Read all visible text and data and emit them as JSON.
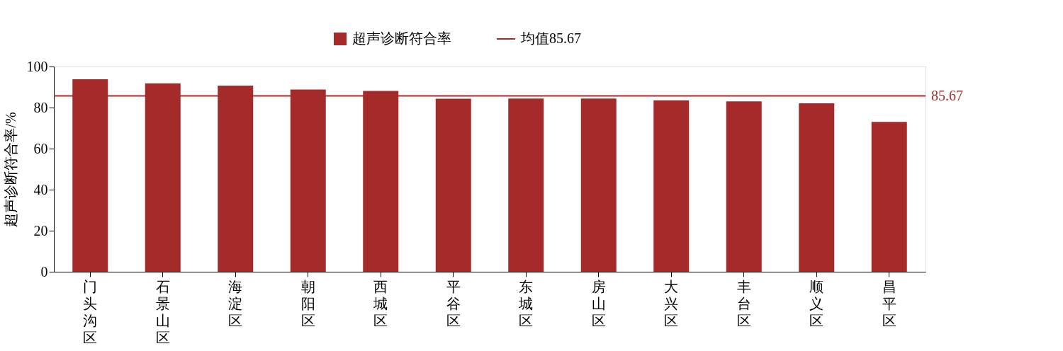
{
  "chart_data": {
    "type": "bar",
    "ylabel": "超声诊断符合率/%",
    "categories": [
      "门头沟区",
      "石景山区",
      "海淀区",
      "朝阳区",
      "西城区",
      "平谷区",
      "东城区",
      "房山区",
      "大兴区",
      "丰台区",
      "顺义区",
      "昌平区"
    ],
    "series": [
      {
        "name": "超声诊断符合率",
        "color": "#a52a2a",
        "values": [
          93.8,
          91.8,
          90.7,
          88.8,
          88.1,
          84.3,
          84.4,
          84.4,
          83.5,
          83.0,
          82.1,
          73.0
        ]
      }
    ],
    "ylim": [
      0,
      100
    ],
    "yticks": [
      0,
      20,
      40,
      60,
      80,
      100
    ],
    "grid": false,
    "legend": "top",
    "ref_lines": [
      {
        "axis": "y",
        "value": 85.67,
        "label": "均值85.67",
        "color": "#a52a2a"
      }
    ],
    "annotations": [
      "85.67"
    ]
  }
}
